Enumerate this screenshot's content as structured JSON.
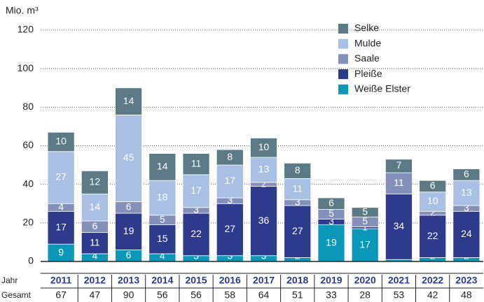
{
  "chart_data": {
    "type": "stacked_bar",
    "y_label": "Mio. m³",
    "categories": [
      "2011",
      "2012",
      "2013",
      "2014",
      "2015",
      "2016",
      "2017",
      "2018",
      "2019",
      "2020",
      "2021",
      "2022",
      "2023"
    ],
    "series": [
      {
        "name": "Weiße Elster",
        "color": "#0a97b8",
        "values": [
          9,
          4,
          6,
          4,
          3,
          3,
          3,
          2,
          19,
          17,
          1,
          2,
          2
        ]
      },
      {
        "name": "Pleiße",
        "color": "#2e3a8c",
        "values": [
          17,
          11,
          19,
          15,
          22,
          27,
          36,
          27,
          3,
          1,
          34,
          22,
          24
        ]
      },
      {
        "name": "Saale",
        "color": "#8390b9",
        "values": [
          4,
          6,
          6,
          5,
          3,
          3,
          2,
          3,
          5,
          5,
          11,
          2,
          3
        ]
      },
      {
        "name": "Mulde",
        "color": "#a9bfe4",
        "values": [
          27,
          14,
          45,
          18,
          17,
          17,
          13,
          11,
          null,
          null,
          null,
          10,
          13
        ]
      },
      {
        "name": "Selke",
        "color": "#5b7a86",
        "values": [
          10,
          12,
          14,
          14,
          11,
          8,
          10,
          8,
          6,
          5,
          7,
          6,
          6
        ]
      }
    ],
    "ylim": [
      0,
      120
    ],
    "yticks": [
      0,
      20,
      40,
      60,
      80,
      100,
      120
    ],
    "grid": true,
    "legend_position": "top-right",
    "table_labels": [
      "Jahr",
      "Gesamt"
    ],
    "totals": [
      67,
      47,
      90,
      56,
      56,
      58,
      64,
      51,
      33,
      28,
      53,
      42,
      48
    ]
  }
}
